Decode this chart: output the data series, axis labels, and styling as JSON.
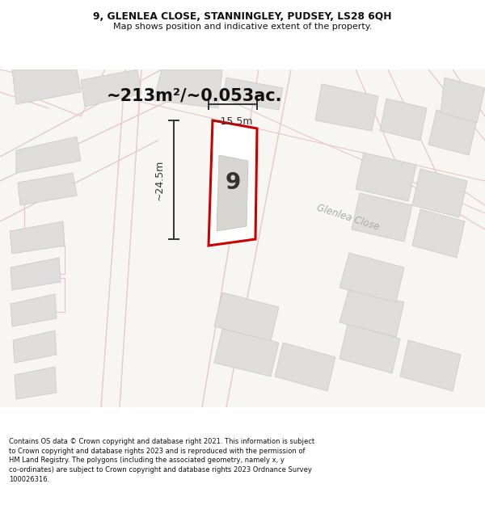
{
  "title_line1": "9, GLENLEA CLOSE, STANNINGLEY, PUDSEY, LS28 6QH",
  "title_line2": "Map shows position and indicative extent of the property.",
  "area_label": "~213m²/~0.053ac.",
  "property_number": "9",
  "dim_width": "~15.5m",
  "dim_height": "~24.5m",
  "street_name": "Glenlea Close",
  "footer_text": "Contains OS data © Crown copyright and database right 2021. This information is subject to Crown copyright and database rights 2023 and is reproduced with the permission of HM Land Registry. The polygons (including the associated geometry, namely x, y co-ordinates) are subject to Crown copyright and database rights 2023 Ordnance Survey 100026316.",
  "bg_color": "#ffffff",
  "map_bg": "#f7f5f2",
  "outline_color": "#cc0000",
  "road_line_color": "#e8c8c8",
  "building_fill": "#e0dedd",
  "building_edge": "#cccccc",
  "road_fill": "#f0eeeb",
  "dim_color": "#333333",
  "street_color": "#aaaaaa",
  "title_color": "#111111",
  "footer_color": "#111111",
  "prop_fill": "#ffffff"
}
